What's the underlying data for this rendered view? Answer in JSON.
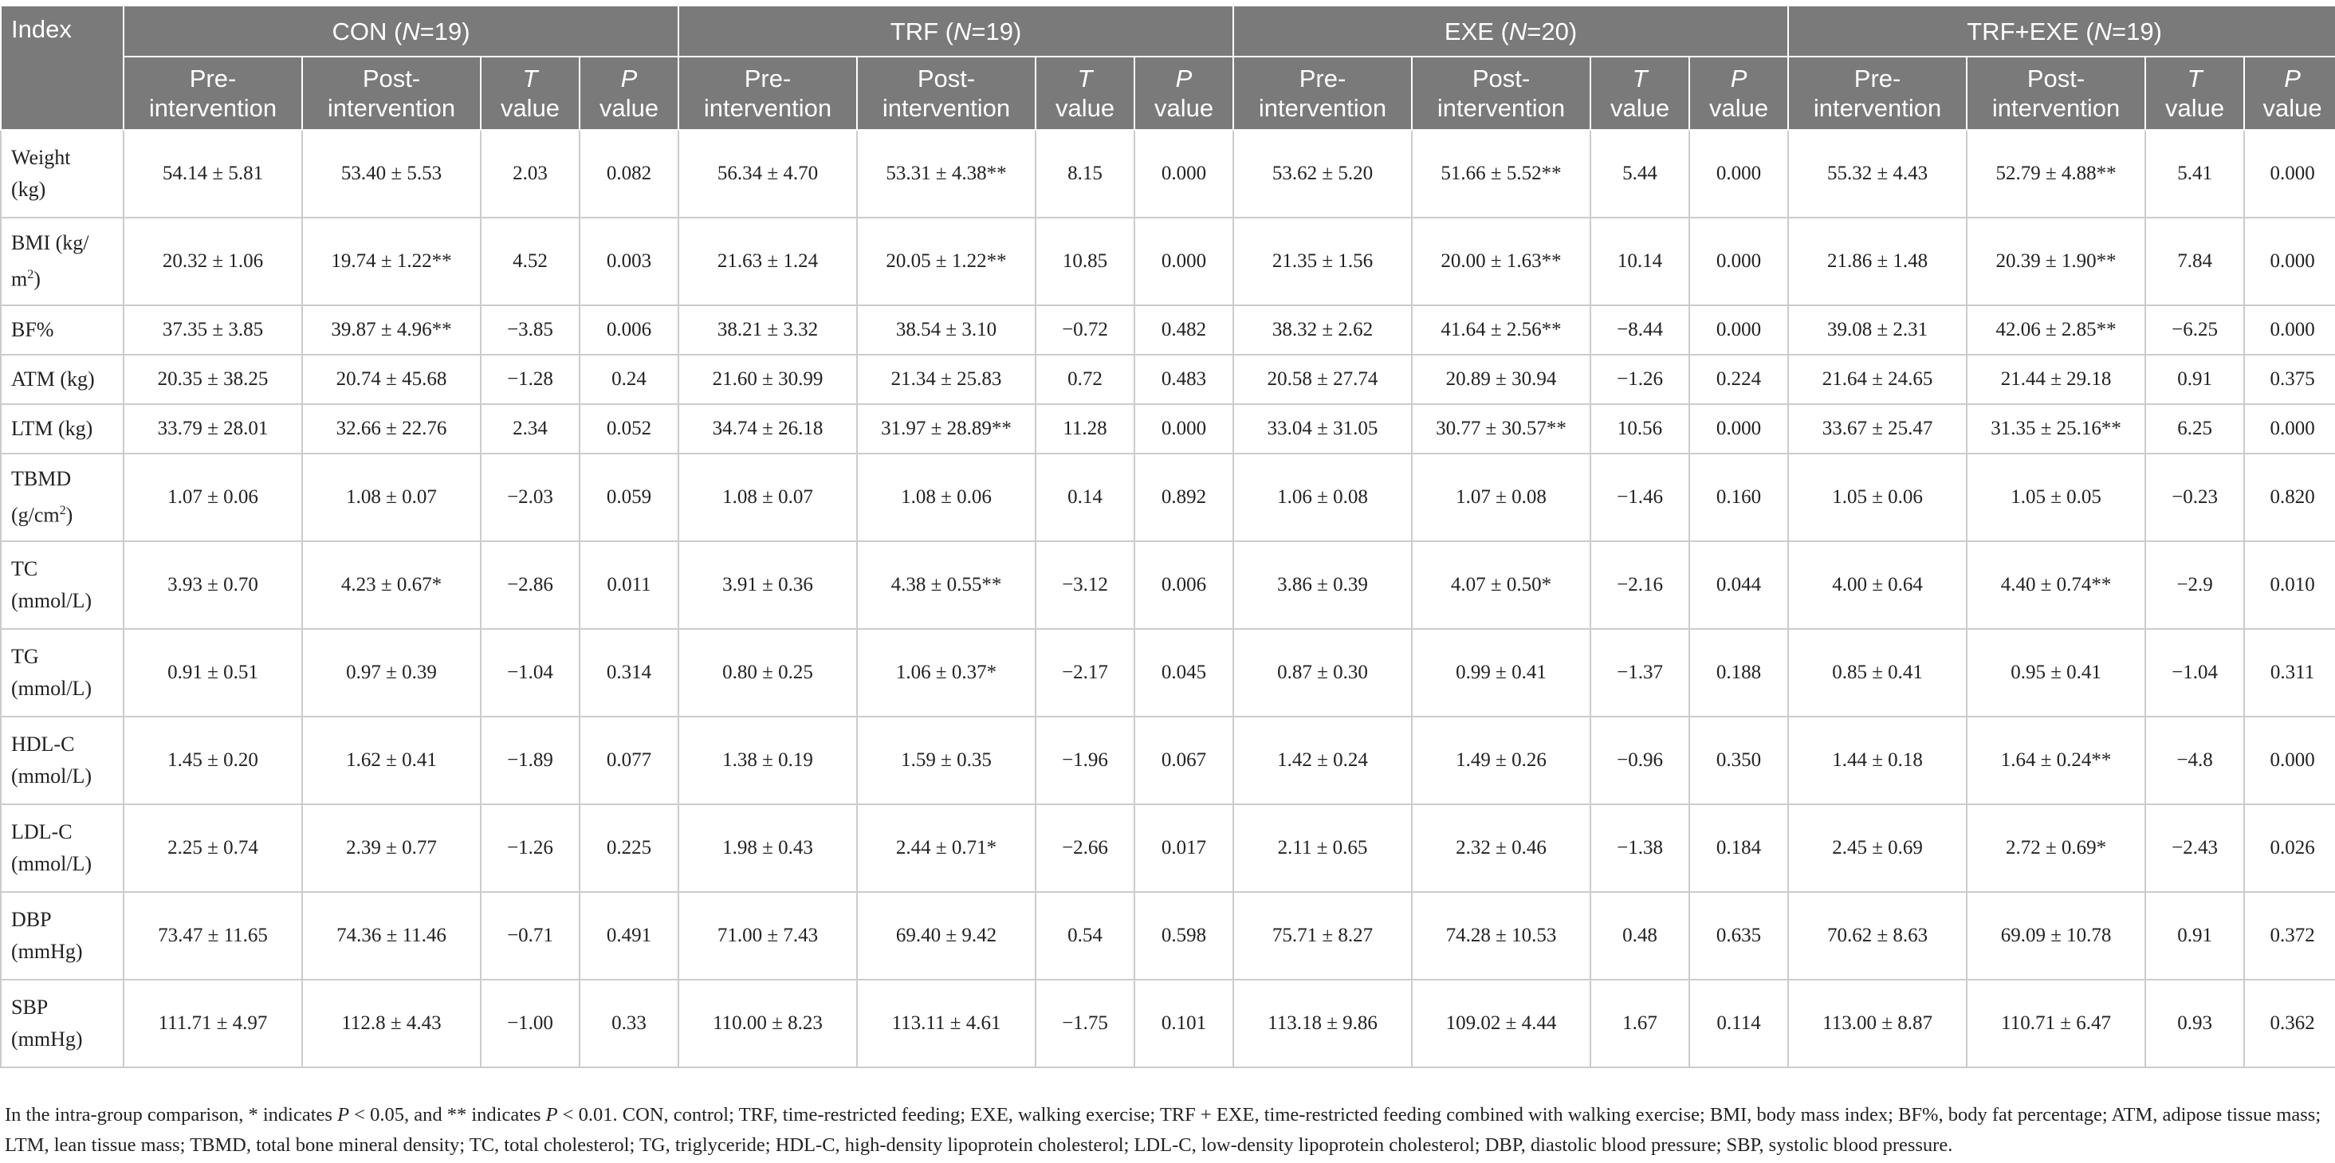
{
  "table": {
    "index_header": "Index",
    "groups": [
      {
        "name": "CON",
        "n_label": "N",
        "n_value": "=19)"
      },
      {
        "name": "TRF",
        "n_label": "N",
        "n_value": "=19)"
      },
      {
        "name": "EXE",
        "n_label": "N",
        "n_value": "=20)"
      },
      {
        "name": "TRF+EXE",
        "n_label": "N",
        "n_value": "=19)"
      }
    ],
    "subheaders": {
      "pre_1": "Pre-",
      "pre_2": "intervention",
      "post_1": "Post-",
      "post_2": "intervention",
      "t_1": "T",
      "t_2": "value",
      "p_1": "P",
      "p_2": "value"
    },
    "rows": [
      {
        "index_1": "Weight",
        "index_2": "(kg)",
        "sup": "",
        "index_3": "",
        "short": false,
        "cells": [
          "54.14 ± 5.81",
          "53.40 ± 5.53",
          "2.03",
          "0.082",
          "56.34 ± 4.70",
          "53.31 ± 4.38**",
          "8.15",
          "0.000",
          "53.62 ± 5.20",
          "51.66 ± 5.52**",
          "5.44",
          "0.000",
          "55.32 ± 4.43",
          "52.79 ± 4.88**",
          "5.41",
          "0.000"
        ]
      },
      {
        "index_1": "BMI (kg/",
        "index_2": "m",
        "sup": "2",
        "index_3": ")",
        "short": false,
        "cells": [
          "20.32 ± 1.06",
          "19.74 ± 1.22**",
          "4.52",
          "0.003",
          "21.63 ± 1.24",
          "20.05 ± 1.22**",
          "10.85",
          "0.000",
          "21.35 ± 1.56",
          "20.00 ± 1.63**",
          "10.14",
          "0.000",
          "21.86 ± 1.48",
          "20.39 ± 1.90**",
          "7.84",
          "0.000"
        ]
      },
      {
        "index_1": "BF%",
        "index_2": "",
        "sup": "",
        "index_3": "",
        "short": true,
        "cells": [
          "37.35 ± 3.85",
          "39.87 ± 4.96**",
          "−3.85",
          "0.006",
          "38.21 ± 3.32",
          "38.54 ± 3.10",
          "−0.72",
          "0.482",
          "38.32 ± 2.62",
          "41.64 ± 2.56**",
          "−8.44",
          "0.000",
          "39.08 ± 2.31",
          "42.06 ± 2.85**",
          "−6.25",
          "0.000"
        ]
      },
      {
        "index_1": "ATM (kg)",
        "index_2": "",
        "sup": "",
        "index_3": "",
        "short": true,
        "cells": [
          "20.35 ± 38.25",
          "20.74 ± 45.68",
          "−1.28",
          "0.24",
          "21.60 ± 30.99",
          "21.34 ± 25.83",
          "0.72",
          "0.483",
          "20.58 ± 27.74",
          "20.89 ± 30.94",
          "−1.26",
          "0.224",
          "21.64 ± 24.65",
          "21.44 ± 29.18",
          "0.91",
          "0.375"
        ]
      },
      {
        "index_1": "LTM (kg)",
        "index_2": "",
        "sup": "",
        "index_3": "",
        "short": true,
        "cells": [
          "33.79 ± 28.01",
          "32.66 ± 22.76",
          "2.34",
          "0.052",
          "34.74 ± 26.18",
          "31.97 ± 28.89**",
          "11.28",
          "0.000",
          "33.04 ± 31.05",
          "30.77 ± 30.57**",
          "10.56",
          "0.000",
          "33.67 ± 25.47",
          "31.35 ± 25.16**",
          "6.25",
          "0.000"
        ]
      },
      {
        "index_1": "TBMD",
        "index_2": "(g/cm",
        "sup": "2",
        "index_3": ")",
        "short": false,
        "cells": [
          "1.07 ± 0.06",
          "1.08 ± 0.07",
          "−2.03",
          "0.059",
          "1.08 ± 0.07",
          "1.08 ± 0.06",
          "0.14",
          "0.892",
          "1.06 ± 0.08",
          "1.07 ± 0.08",
          "−1.46",
          "0.160",
          "1.05 ± 0.06",
          "1.05 ± 0.05",
          "−0.23",
          "0.820"
        ]
      },
      {
        "index_1": "TC",
        "index_2": "(mmol/L)",
        "sup": "",
        "index_3": "",
        "short": false,
        "cells": [
          "3.93 ± 0.70",
          "4.23 ± 0.67*",
          "−2.86",
          "0.011",
          "3.91 ± 0.36",
          "4.38 ± 0.55**",
          "−3.12",
          "0.006",
          "3.86 ± 0.39",
          "4.07 ± 0.50*",
          "−2.16",
          "0.044",
          "4.00 ± 0.64",
          "4.40 ± 0.74**",
          "−2.9",
          "0.010"
        ]
      },
      {
        "index_1": "TG",
        "index_2": "(mmol/L)",
        "sup": "",
        "index_3": "",
        "short": false,
        "cells": [
          "0.91 ± 0.51",
          "0.97 ± 0.39",
          "−1.04",
          "0.314",
          "0.80 ± 0.25",
          "1.06 ± 0.37*",
          "−2.17",
          "0.045",
          "0.87 ± 0.30",
          "0.99 ± 0.41",
          "−1.37",
          "0.188",
          "0.85 ± 0.41",
          "0.95 ± 0.41",
          "−1.04",
          "0.311"
        ]
      },
      {
        "index_1": "HDL-C",
        "index_2": "(mmol/L)",
        "sup": "",
        "index_3": "",
        "short": false,
        "cells": [
          "1.45 ± 0.20",
          "1.62 ± 0.41",
          "−1.89",
          "0.077",
          "1.38 ± 0.19",
          "1.59 ± 0.35",
          "−1.96",
          "0.067",
          "1.42 ± 0.24",
          "1.49 ± 0.26",
          "−0.96",
          "0.350",
          "1.44 ± 0.18",
          "1.64 ± 0.24**",
          "−4.8",
          "0.000"
        ]
      },
      {
        "index_1": "LDL-C",
        "index_2": "(mmol/L)",
        "sup": "",
        "index_3": "",
        "short": false,
        "cells": [
          "2.25 ± 0.74",
          "2.39 ± 0.77",
          "−1.26",
          "0.225",
          "1.98 ± 0.43",
          "2.44 ± 0.71*",
          "−2.66",
          "0.017",
          "2.11 ± 0.65",
          "2.32 ± 0.46",
          "−1.38",
          "0.184",
          "2.45 ± 0.69",
          "2.72 ± 0.69*",
          "−2.43",
          "0.026"
        ]
      },
      {
        "index_1": "DBP",
        "index_2": "(mmHg)",
        "sup": "",
        "index_3": "",
        "short": false,
        "cells": [
          "73.47 ± 11.65",
          "74.36 ± 11.46",
          "−0.71",
          "0.491",
          "71.00 ± 7.43",
          "69.40 ± 9.42",
          "0.54",
          "0.598",
          "75.71 ± 8.27",
          "74.28 ± 10.53",
          "0.48",
          "0.635",
          "70.62 ± 8.63",
          "69.09 ± 10.78",
          "0.91",
          "0.372"
        ]
      },
      {
        "index_1": "SBP",
        "index_2": "(mmHg)",
        "sup": "",
        "index_3": "",
        "short": false,
        "cells": [
          "111.71 ± 4.97",
          "112.8 ± 4.43",
          "−1.00",
          "0.33",
          "110.00 ± 8.23",
          "113.11 ± 4.61",
          "−1.75",
          "0.101",
          "113.18 ± 9.86",
          "109.02 ± 4.44",
          "1.67",
          "0.114",
          "113.00 ± 8.87",
          "110.71 ± 6.47",
          "0.93",
          "0.362"
        ]
      }
    ]
  },
  "footnote": {
    "part1": "In the intra-group comparison, * indicates ",
    "p1": "P",
    "part2": " < 0.05, and ** indicates ",
    "p2": "P",
    "part3": " < 0.01. CON, control; TRF, time-restricted feeding; EXE, walking exercise; TRF + EXE, time-restricted feeding combined with walking exercise; BMI, body mass index; BF%, body fat percentage; ATM, adipose tissue mass; LTM, lean tissue mass; TBMD, total bone mineral density; TC, total cholesterol; TG, triglyceride; HDL-C, high-density lipoprotein cholesterol; LDL-C, low-density lipoprotein cholesterol; DBP, diastolic blood pressure; SBP, systolic blood pressure."
  }
}
